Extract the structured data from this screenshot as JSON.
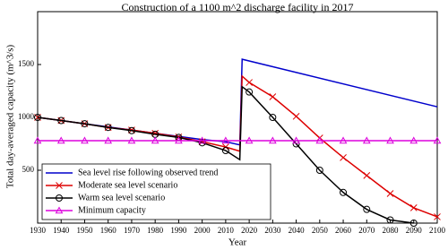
{
  "chart_data": {
    "type": "line",
    "title": "Construction of a 1100 m^2 discharge facility in 2017",
    "x_label": "Year",
    "y_label": "Total day-averaged capacity (m^3/s)",
    "xlim": [
      1930,
      2100
    ],
    "xticks": [
      1930,
      1940,
      1950,
      1960,
      1970,
      1980,
      1990,
      2000,
      2010,
      2020,
      2030,
      2040,
      2050,
      2060,
      2070,
      2080,
      2090,
      2100
    ],
    "ylim": [
      0,
      2000
    ],
    "yticks": [
      500,
      1000,
      1500
    ],
    "grid": false,
    "legend": "lower left",
    "series": [
      {
        "name": "Sea level rise following observed trend",
        "color": "#0000cc",
        "marker": "none",
        "x": [
          1930,
          1940,
          1950,
          1960,
          1970,
          1980,
          1990,
          2000,
          2010,
          2016,
          2017,
          2100
        ],
        "values": [
          1000,
          970,
          940,
          910,
          880,
          850,
          820,
          790,
          770,
          740,
          1550,
          1100
        ]
      },
      {
        "name": "Moderate sea level scenario",
        "color": "#dd0000",
        "marker": "x",
        "x": [
          1930,
          1940,
          1950,
          1960,
          1970,
          1980,
          1990,
          2000,
          2010,
          2016,
          2017,
          2020,
          2030,
          2040,
          2050,
          2060,
          2070,
          2080,
          2090,
          2100
        ],
        "values": [
          1000,
          970,
          940,
          905,
          880,
          850,
          815,
          770,
          720,
          680,
          1390,
          1330,
          1195,
          1010,
          805,
          620,
          450,
          280,
          145,
          60
        ]
      },
      {
        "name": "Warm sea level scenario",
        "color": "#000000",
        "marker": "o",
        "x": [
          1930,
          1940,
          1950,
          1960,
          1970,
          1980,
          1990,
          2000,
          2010,
          2016,
          2017,
          2020,
          2030,
          2040,
          2050,
          2060,
          2070,
          2080,
          2090
        ],
        "values": [
          1000,
          970,
          940,
          905,
          875,
          840,
          810,
          760,
          686,
          600,
          1290,
          1240,
          1000,
          750,
          500,
          290,
          130,
          30,
          0
        ]
      },
      {
        "name": "Minimum capacity",
        "color": "#dd00dd",
        "marker": "^",
        "x": [
          1930,
          1940,
          1950,
          1960,
          1970,
          1980,
          1990,
          2000,
          2010,
          2020,
          2030,
          2040,
          2050,
          2060,
          2070,
          2080,
          2090,
          2100
        ],
        "values": [
          780,
          780,
          780,
          780,
          780,
          780,
          780,
          780,
          780,
          780,
          780,
          780,
          780,
          780,
          780,
          780,
          780,
          780
        ]
      }
    ]
  }
}
